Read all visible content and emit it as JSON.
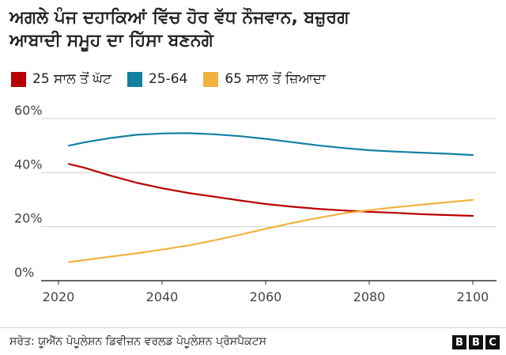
{
  "title_line1": "ਅਗਲੇ ਪੰਜ ਦਹਾਕਿਆਂ ਵਿੱਚ ਹੋਰ ਵੱਧ ਨੌਜਵਾਨ, ਬਜ਼ੁਰਗ",
  "title_line2": "ਆਬਾਦੀ ਸਮੂਹ ਦਾ ਹਿੱਸਾ ਬਣਨਗੇ",
  "source": "ਸਰੋਤ: ਯੂਐੱਨ ਪੋਪੂਲੇਸ਼ਨ ਡਿਵੀਜ਼ਨ ਵਰਲਡ ਪੋਪੂਲੇਸ਼ਨ ਪ੍ਰੋਸਪੈਕਟਸ",
  "logo": [
    "B",
    "B",
    "C"
  ],
  "colors": {
    "under25": "#b80000",
    "mid": "#1380a1",
    "over65": "#f0b340",
    "grid": "#cfcfcf",
    "axis": "#333333"
  },
  "chart_data": {
    "type": "line",
    "title": "ਅਗਲੇ ਪੰਜ ਦਹਾਕਿਆਂ ਵਿੱਚ ਹੋਰ ਵੱਧ ਨੌਜਵਾਨ, ਬਜ਼ੁਰਗ ਆਬਾਦੀ ਸਮੂਹ ਦਾ ਹਿੱਸਾ ਬਣਨਗੇ",
    "xlabel": "",
    "ylabel": "",
    "xlim": [
      2020,
      2100
    ],
    "ylim": [
      0,
      60
    ],
    "xticks": [
      "2020",
      "2040",
      "2060",
      "2080",
      "2100"
    ],
    "yticks": [
      "0%",
      "20%",
      "40%",
      "60%"
    ],
    "grid": true,
    "legend_position": "top-left",
    "x": [
      2022,
      2025,
      2030,
      2035,
      2040,
      2045,
      2050,
      2055,
      2060,
      2065,
      2070,
      2075,
      2080,
      2085,
      2090,
      2095,
      2100
    ],
    "series": [
      {
        "name": "25 ਸਾਲ ਤੋਂ ਘੱਟ",
        "color": "#b80000",
        "values": [
          43.2,
          41.8,
          38.9,
          36.3,
          34.2,
          32.5,
          31.1,
          29.7,
          28.4,
          27.4,
          26.6,
          26.0,
          25.5,
          25.1,
          24.6,
          24.3,
          24.0
        ]
      },
      {
        "name": "25-64",
        "color": "#1380a1",
        "values": [
          50.0,
          51.2,
          52.8,
          54.0,
          54.5,
          54.6,
          54.2,
          53.5,
          52.5,
          51.3,
          50.1,
          49.1,
          48.3,
          47.8,
          47.4,
          47.0,
          46.5
        ]
      },
      {
        "name": "65 ਸਾਲ ਤੋਂ ਜ਼ਿਆਦਾ",
        "color": "#f0b340",
        "values": [
          6.9,
          7.6,
          8.9,
          10.1,
          11.5,
          13.0,
          14.9,
          17.0,
          19.2,
          21.3,
          23.2,
          24.9,
          26.1,
          27.2,
          28.1,
          29.0,
          29.9
        ]
      }
    ]
  }
}
